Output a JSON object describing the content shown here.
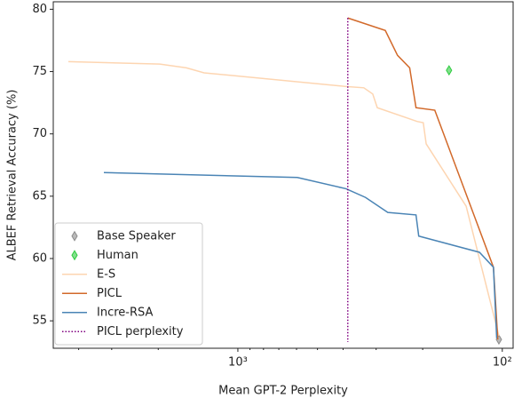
{
  "chart_data": {
    "type": "line",
    "xlabel": "Mean GPT-2 Perplexity",
    "ylabel": "ALBEF Retrieval Accuracy (%)",
    "xscale": "log",
    "xlim": [
      4990,
      91
    ],
    "xticks": [
      {
        "value": 1000,
        "label": "10³"
      },
      {
        "value": 100,
        "label": "10²"
      }
    ],
    "xminorticks": [
      4000,
      3000,
      2000,
      900,
      800,
      700,
      600,
      500,
      400,
      300,
      200
    ],
    "ylim": [
      52.8,
      80.6
    ],
    "yticks": [
      55,
      60,
      65,
      70,
      75,
      80
    ],
    "legend": "lower left",
    "series": [
      {
        "name": "Base Speaker",
        "kind": "scatter",
        "marker": "diamond",
        "color": "#8c8c8c",
        "x": [
          103
        ],
        "values": [
          53.5
        ]
      },
      {
        "name": "Human",
        "kind": "scatter",
        "marker": "diamond",
        "color": "#2ecc40",
        "x": [
          159
        ],
        "values": [
          75.1
        ]
      },
      {
        "name": "E-S",
        "kind": "line",
        "color": "#fdd5b1",
        "x": [
          4375,
          1973,
          1565,
          1342,
          390,
          334,
          309,
          297,
          210,
          199,
          194,
          137,
          103
        ],
        "values": [
          75.8,
          75.6,
          75.3,
          74.9,
          73.8,
          73.7,
          73.2,
          72.1,
          71.0,
          70.9,
          69.2,
          64.2,
          53.8
        ]
      },
      {
        "name": "PICL",
        "kind": "line",
        "color": "#d2692a",
        "x": [
          384,
          277,
          249,
          224,
          212,
          180,
          108,
          104
        ],
        "values": [
          79.3,
          78.3,
          76.3,
          75.3,
          72.1,
          71.9,
          59.3,
          53.5
        ]
      },
      {
        "name": "Incre-RSA",
        "kind": "line",
        "color": "#4a84b5",
        "x": [
          3212,
          596,
          390,
          329,
          271,
          212,
          207,
          122,
          108,
          105
        ],
        "values": [
          66.9,
          66.5,
          65.6,
          64.9,
          63.7,
          63.5,
          61.8,
          60.5,
          59.3,
          53.6
        ]
      },
      {
        "name": "PICL perplexity",
        "kind": "line",
        "style": "dotted",
        "color": "#800080",
        "x": [
          384,
          384
        ],
        "values": [
          79.3,
          53.3
        ]
      }
    ]
  }
}
